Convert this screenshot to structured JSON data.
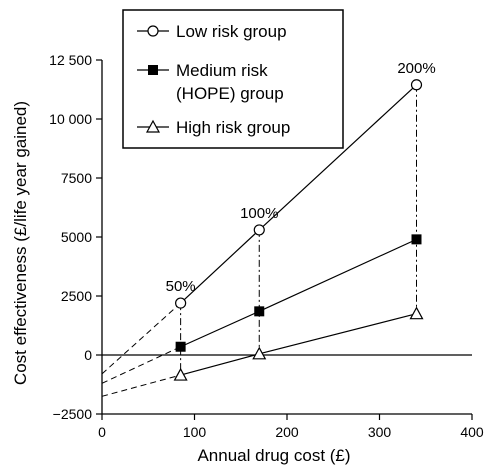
{
  "chart_data": {
    "type": "line",
    "xlabel": "Annual drug cost (£)",
    "ylabel": "Cost effectiveness (£/life year gained)",
    "xlim": [
      0,
      400
    ],
    "ylim": [
      -2500,
      12500
    ],
    "xticks": [
      0,
      100,
      200,
      300,
      400
    ],
    "xtick_labels": [
      "0",
      "100",
      "200",
      "300",
      "400"
    ],
    "yticks": [
      -2500,
      0,
      2500,
      5000,
      7500,
      10000,
      12500
    ],
    "ytick_labels": [
      "−2500",
      "0",
      "2500",
      "5000",
      "7500",
      "10 000",
      "12 500"
    ],
    "grid": false,
    "legend_position": "top-left",
    "series": [
      {
        "name": "Low risk group",
        "marker": "open-circle",
        "x": [
          85,
          170,
          340
        ],
        "y": [
          2200,
          5300,
          11450
        ],
        "extrapolated_to_zero": -800
      },
      {
        "name": "Medium risk (HOPE) group",
        "marker": "filled-square",
        "x": [
          85,
          170,
          340
        ],
        "y": [
          350,
          1850,
          4900
        ],
        "extrapolated_to_zero": -1200
      },
      {
        "name": "High risk group",
        "marker": "open-triangle",
        "x": [
          85,
          170,
          340
        ],
        "y": [
          -850,
          50,
          1750
        ],
        "extrapolated_to_zero": -1750
      }
    ],
    "annotations": [
      {
        "text": "50%",
        "x": 85,
        "y": 2200
      },
      {
        "text": "100%",
        "x": 170,
        "y": 5300
      },
      {
        "text": "200%",
        "x": 340,
        "y": 11450
      }
    ],
    "legend": [
      "Low risk group",
      "Medium risk",
      "(HOPE) group",
      "High risk group"
    ]
  }
}
